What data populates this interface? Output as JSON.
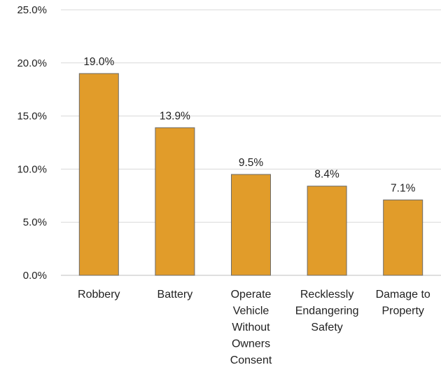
{
  "chart_data": {
    "type": "bar",
    "categories": [
      [
        "Robbery"
      ],
      [
        "Battery"
      ],
      [
        "Operate",
        "Vehicle",
        "Without",
        "Owners",
        "Consent"
      ],
      [
        "Recklessly",
        "Endangering",
        "Safety"
      ],
      [
        "Damage to",
        "Property"
      ]
    ],
    "values": [
      19.0,
      13.9,
      9.5,
      8.4,
      7.1
    ],
    "data_labels": [
      "19.0%",
      "13.9%",
      "9.5%",
      "8.4%",
      "7.1%"
    ],
    "y_ticks": [
      0,
      5,
      10,
      15,
      20,
      25
    ],
    "y_tick_labels": [
      "0.0%",
      "5.0%",
      "10.0%",
      "15.0%",
      "20.0%",
      "25.0%"
    ],
    "ylim": [
      0,
      25
    ],
    "grid": true,
    "legend": "none",
    "title": "",
    "xlabel": "",
    "ylabel": "",
    "colors": {
      "bar": "#E19C2A",
      "bar_border": "#6b6b6b"
    }
  }
}
